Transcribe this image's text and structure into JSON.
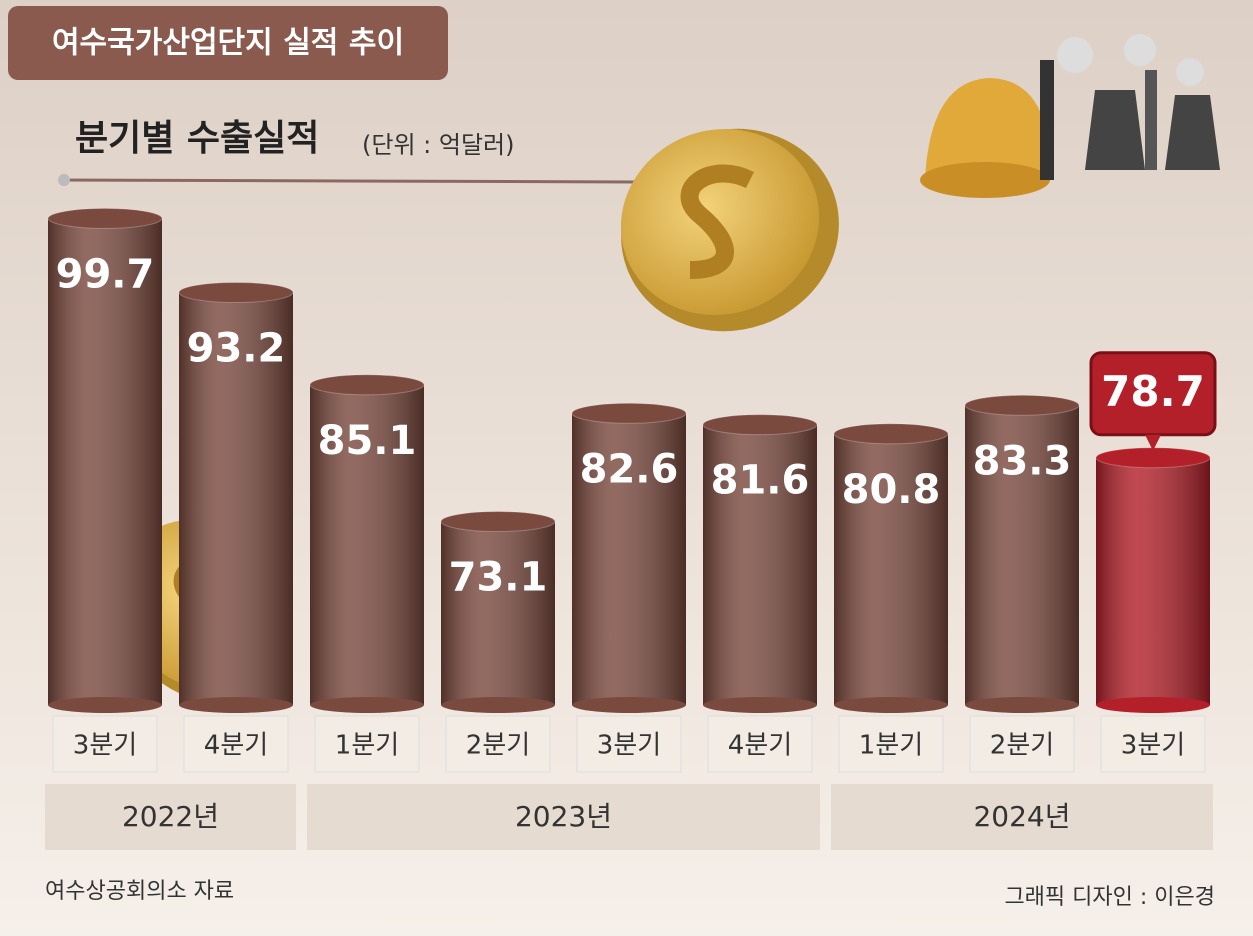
{
  "chart_data": {
    "type": "bar",
    "title": "여수국가산업단지 실적 추이",
    "subtitle": "분기별 수출실적",
    "unit": "(단위 : 억달러)",
    "groups": [
      {
        "name": "2022년",
        "categories": [
          "3분기",
          "4분기"
        ],
        "values": [
          99.7,
          93.2
        ],
        "colors": [
          "#7b4a3f",
          "#7b4a3f"
        ]
      },
      {
        "name": "2023년",
        "categories": [
          "1분기",
          "2분기",
          "3분기",
          "4분기"
        ],
        "values": [
          85.1,
          73.1,
          82.6,
          81.6
        ],
        "colors": [
          "#7b4a3f",
          "#7b4a3f",
          "#7b4a3f",
          "#7b4a3f"
        ]
      },
      {
        "name": "2024년",
        "categories": [
          "1분기",
          "2분기",
          "3분기"
        ],
        "values": [
          80.8,
          83.3,
          78.7
        ],
        "colors": [
          "#7b4a3f",
          "#7b4a3f",
          "#b3202a"
        ]
      }
    ],
    "highlight_color": "#b3202a",
    "ylim": [
      57,
      100
    ],
    "source": "여수상공회의소 자료",
    "credit": "그래픽 디자인 : 이은경"
  }
}
